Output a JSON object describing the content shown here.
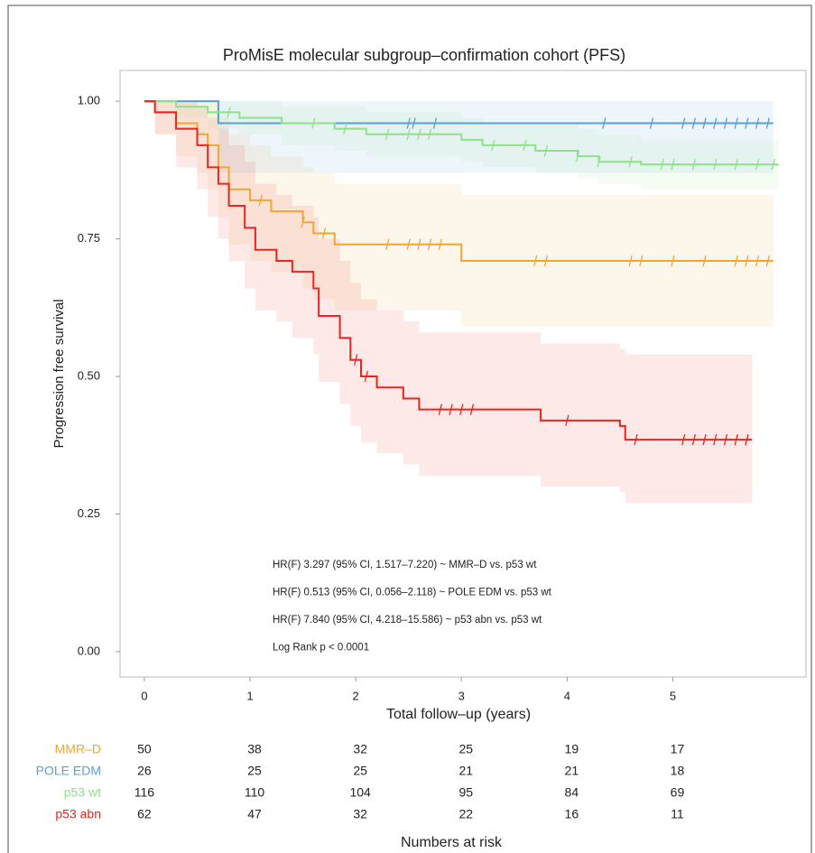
{
  "chart_data": {
    "type": "step",
    "title": "ProMisE molecular subgroup–confirmation cohort (PFS)",
    "x_label": "Total follow–up (years)",
    "y_label": "Progression free survival",
    "xlim": [
      -0.23,
      6.26
    ],
    "ylim": [
      -0.046,
      1.056
    ],
    "xticks": [
      0,
      1,
      2,
      3,
      4,
      5
    ],
    "yticks": [
      {
        "value": 0,
        "label": "0.00"
      },
      {
        "value": 0.25,
        "label": "0.25"
      },
      {
        "value": 0.5,
        "label": "0.50"
      },
      {
        "value": 0.75,
        "label": "0.75"
      },
      {
        "value": 1,
        "label": "1.00"
      }
    ],
    "series": [
      {
        "name": "MMR–D",
        "color": "#f0a630",
        "x": [
          0,
          0.1,
          0.3,
          0.5,
          0.6,
          0.7,
          0.8,
          1.0,
          1.2,
          1.5,
          1.6,
          1.8,
          3.0,
          5.95
        ],
        "values": [
          1,
          0.98,
          0.96,
          0.94,
          0.92,
          0.88,
          0.84,
          0.82,
          0.8,
          0.78,
          0.76,
          0.74,
          0.71,
          0.71
        ],
        "ci_upper": [
          1,
          1,
          1,
          1,
          1,
          0.97,
          0.94,
          0.92,
          0.9,
          0.88,
          0.87,
          0.85,
          0.83,
          0.83
        ],
        "ci_lower": [
          1,
          0.94,
          0.9,
          0.87,
          0.84,
          0.79,
          0.74,
          0.71,
          0.69,
          0.66,
          0.64,
          0.62,
          0.59,
          0.59
        ],
        "censored": [
          1.1,
          1.5,
          1.7,
          2.3,
          2.5,
          2.6,
          2.7,
          2.8,
          3.7,
          3.8,
          4.6,
          4.7,
          5.0,
          5.3,
          5.6,
          5.7,
          5.8,
          5.9
        ]
      },
      {
        "name": "POLE EDM",
        "color": "#5a9fd4",
        "x": [
          0,
          0.7,
          5.95
        ],
        "values": [
          1,
          0.96,
          0.96
        ],
        "ci_upper": [
          1,
          1,
          1
        ],
        "ci_lower": [
          1,
          0.87,
          0.87
        ],
        "censored": [
          2.5,
          2.55,
          2.75,
          4.35,
          4.8,
          5.1,
          5.2,
          5.3,
          5.4,
          5.5,
          5.6,
          5.7,
          5.8,
          5.9
        ]
      },
      {
        "name": "p53 wt",
        "color": "#8fe08a",
        "x": [
          0,
          0.3,
          0.6,
          0.9,
          1.3,
          1.8,
          2.1,
          3.0,
          3.2,
          3.7,
          4.1,
          4.3,
          4.7,
          6.0
        ],
        "values": [
          1,
          0.99,
          0.98,
          0.97,
          0.96,
          0.95,
          0.94,
          0.93,
          0.92,
          0.91,
          0.9,
          0.89,
          0.885,
          0.885
        ],
        "ci_upper": [
          1,
          1,
          1,
          1,
          0.99,
          0.99,
          0.98,
          0.97,
          0.96,
          0.96,
          0.95,
          0.94,
          0.93,
          0.93
        ],
        "ci_lower": [
          1,
          0.97,
          0.95,
          0.94,
          0.92,
          0.91,
          0.9,
          0.89,
          0.88,
          0.87,
          0.86,
          0.85,
          0.84,
          0.84
        ],
        "censored": [
          0.8,
          1.6,
          1.9,
          2.3,
          2.5,
          2.6,
          2.7,
          3.3,
          3.6,
          3.8,
          4.1,
          4.3,
          4.6,
          4.9,
          5.0,
          5.2,
          5.4,
          5.6,
          5.8,
          5.95
        ]
      },
      {
        "name": "p53 abn",
        "color": "#e8251f",
        "x": [
          0,
          0.1,
          0.3,
          0.5,
          0.6,
          0.7,
          0.8,
          0.95,
          1.05,
          1.25,
          1.4,
          1.6,
          1.65,
          1.85,
          1.95,
          2.05,
          2.2,
          2.45,
          2.6,
          3.75,
          4.5,
          4.55,
          5.75
        ],
        "values": [
          1,
          0.98,
          0.95,
          0.92,
          0.88,
          0.85,
          0.81,
          0.77,
          0.73,
          0.71,
          0.69,
          0.66,
          0.61,
          0.57,
          0.53,
          0.5,
          0.48,
          0.46,
          0.44,
          0.42,
          0.41,
          0.385,
          0.385
        ],
        "ci_upper": [
          1,
          1,
          1,
          0.99,
          0.97,
          0.95,
          0.92,
          0.89,
          0.85,
          0.83,
          0.81,
          0.79,
          0.75,
          0.71,
          0.67,
          0.64,
          0.62,
          0.6,
          0.58,
          0.56,
          0.55,
          0.54,
          0.54
        ],
        "ci_lower": [
          1,
          0.94,
          0.88,
          0.84,
          0.79,
          0.75,
          0.71,
          0.66,
          0.62,
          0.6,
          0.57,
          0.54,
          0.49,
          0.45,
          0.41,
          0.38,
          0.36,
          0.34,
          0.32,
          0.3,
          0.29,
          0.27,
          0.27
        ],
        "censored": [
          2.0,
          2.1,
          2.8,
          2.9,
          3.0,
          3.1,
          4.0,
          4.65,
          5.1,
          5.2,
          5.3,
          5.4,
          5.5,
          5.6,
          5.7
        ]
      }
    ],
    "annotations": [
      "HR(F) 3.297 (95% CI, 1.517–7.220) ~ MMR–D vs. p53 wt",
      "HR(F) 0.513 (95% CI, 0.056–2.118) ~ POLE EDM vs. p53 wt",
      "HR(F) 7.840 (95% CI, 4.218–15.586) ~ p53 abn vs. p53 wt",
      "Log Rank p < 0.0001"
    ],
    "risk_table": {
      "title": "Numbers at risk",
      "rows": [
        {
          "name": "MMR–D",
          "color": "#f0a630",
          "counts": [
            50,
            38,
            32,
            25,
            19,
            17
          ]
        },
        {
          "name": "POLE EDM",
          "color": "#5a9fd4",
          "counts": [
            26,
            25,
            25,
            21,
            21,
            18
          ]
        },
        {
          "name": "p53 wt",
          "color": "#8fe08a",
          "counts": [
            116,
            110,
            104,
            95,
            84,
            69
          ]
        },
        {
          "name": "p53 abn",
          "color": "#e8251f",
          "counts": [
            62,
            47,
            32,
            22,
            16,
            11
          ]
        }
      ]
    }
  }
}
